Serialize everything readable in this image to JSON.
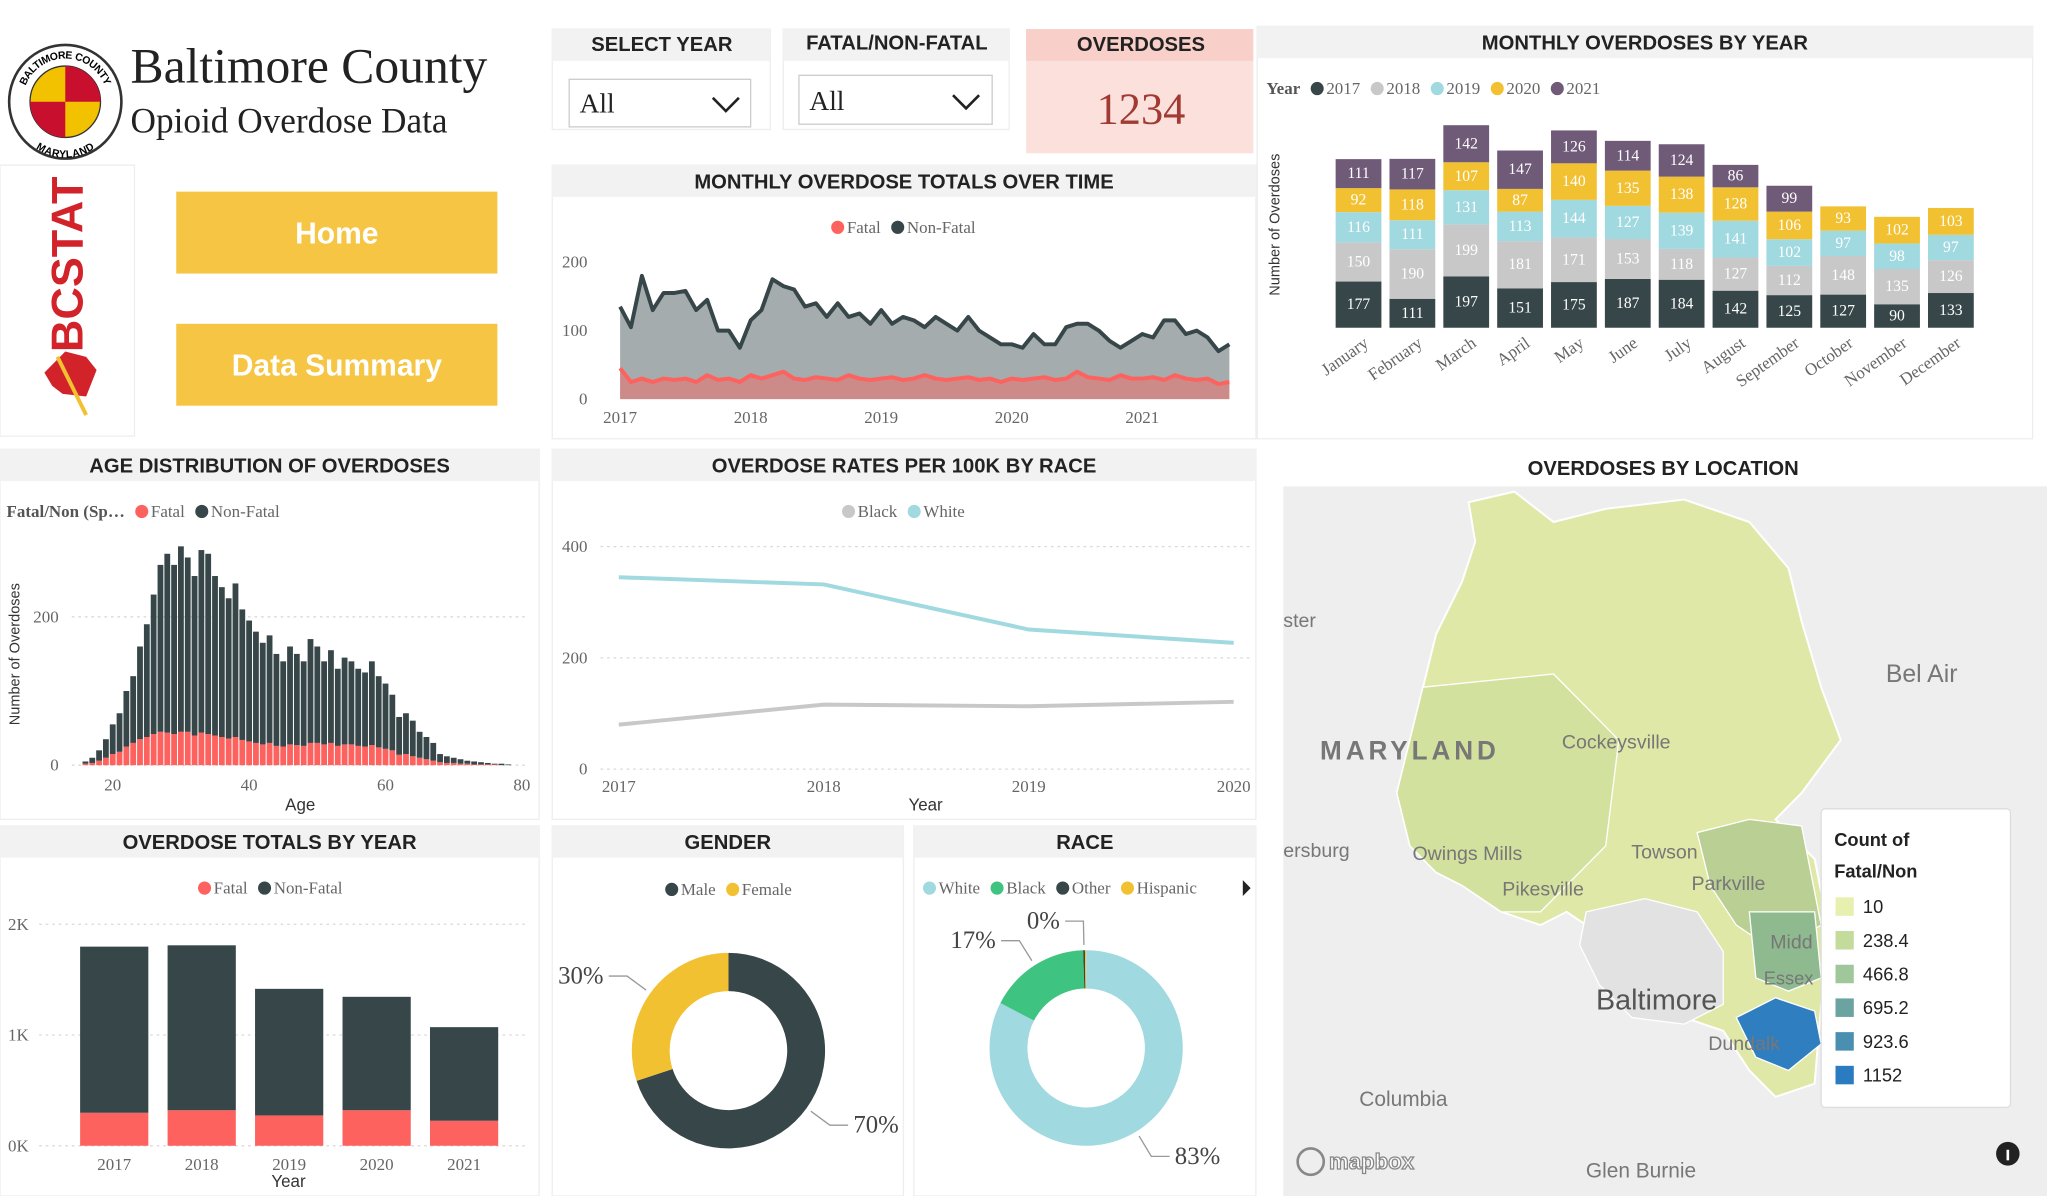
{
  "header": {
    "title": "Baltimore County",
    "subtitle": "Opioid Overdose Data",
    "seal_top": "BALTIMORE COUNTY",
    "seal_bottom": "MARYLAND",
    "logo": "BCSTAT"
  },
  "nav": {
    "buttons": [
      "Home",
      "Data Summary"
    ]
  },
  "filters": [
    {
      "label": "SELECT YEAR",
      "value": "All"
    },
    {
      "label": "FATAL/NON-FATAL",
      "value": "All"
    }
  ],
  "kpi": {
    "label": "OVERDOSES",
    "value": 1234
  },
  "chart_data": [
    {
      "type": "area",
      "title": "MONTHLY OVERDOSE TOTALS OVER TIME",
      "x": [
        2017,
        2017.083,
        2017.167,
        2017.25,
        2017.333,
        2017.417,
        2017.5,
        2017.583,
        2017.667,
        2017.75,
        2017.833,
        2017.917,
        2018,
        2018.083,
        2018.167,
        2018.25,
        2018.333,
        2018.417,
        2018.5,
        2018.583,
        2018.667,
        2018.75,
        2018.833,
        2018.917,
        2019,
        2019.083,
        2019.167,
        2019.25,
        2019.333,
        2019.417,
        2019.5,
        2019.583,
        2019.667,
        2019.75,
        2019.833,
        2019.917,
        2020,
        2020.083,
        2020.167,
        2020.25,
        2020.333,
        2020.417,
        2020.5,
        2020.583,
        2020.667,
        2020.75,
        2020.833,
        2020.917,
        2021,
        2021.083,
        2021.167,
        2021.25,
        2021.333,
        2021.417,
        2021.5,
        2021.583,
        2021.667
      ],
      "series": [
        {
          "name": "Fatal",
          "color": "#fd625e",
          "values": [
            45,
            25,
            30,
            25,
            30,
            28,
            30,
            25,
            35,
            28,
            30,
            25,
            35,
            30,
            35,
            40,
            30,
            28,
            32,
            30,
            28,
            35,
            30,
            28,
            30,
            32,
            28,
            30,
            35,
            30,
            28,
            30,
            32,
            28,
            30,
            25,
            30,
            28,
            30,
            32,
            28,
            30,
            40,
            32,
            30,
            28,
            35,
            30,
            30,
            32,
            28,
            35,
            30,
            28,
            30,
            22,
            25
          ]
        },
        {
          "name": "Non-Fatal",
          "color": "#374649",
          "values": [
            135,
            105,
            180,
            130,
            155,
            155,
            158,
            130,
            145,
            100,
            100,
            75,
            115,
            130,
            175,
            165,
            160,
            135,
            140,
            120,
            140,
            120,
            125,
            110,
            130,
            110,
            120,
            115,
            105,
            120,
            110,
            100,
            120,
            100,
            90,
            80,
            80,
            75,
            95,
            80,
            80,
            105,
            110,
            110,
            100,
            85,
            75,
            85,
            95,
            90,
            115,
            115,
            95,
            100,
            90,
            70,
            80
          ]
        }
      ],
      "xlim": [
        2016.85,
        2021.8
      ],
      "xticks": [
        2017,
        2018,
        2019,
        2020,
        2021
      ],
      "ylim": [
        0,
        220
      ],
      "yticks": [
        0,
        100,
        200
      ],
      "grid": false
    },
    {
      "type": "bar",
      "stacked": true,
      "title": "MONTHLY OVERDOSES BY YEAR",
      "legend_title": "Year",
      "y_label": "Number of Overdoses",
      "categories": [
        "January",
        "February",
        "March",
        "April",
        "May",
        "June",
        "July",
        "August",
        "September",
        "October",
        "November",
        "December"
      ],
      "series": [
        {
          "name": "2017",
          "color": "#374649",
          "values": [
            177,
            111,
            197,
            151,
            175,
            187,
            184,
            142,
            125,
            127,
            90,
            133
          ]
        },
        {
          "name": "2018",
          "color": "#c8c8c8",
          "values": [
            150,
            190,
            199,
            181,
            171,
            153,
            118,
            127,
            112,
            148,
            135,
            126
          ]
        },
        {
          "name": "2019",
          "color": "#a0d9e0",
          "values": [
            116,
            111,
            131,
            113,
            144,
            127,
            139,
            141,
            102,
            97,
            98,
            97
          ]
        },
        {
          "name": "2020",
          "color": "#f2c132",
          "values": [
            92,
            118,
            107,
            87,
            140,
            135,
            138,
            128,
            106,
            93,
            102,
            103
          ]
        },
        {
          "name": "2021",
          "color": "#6f5a78",
          "values": [
            111,
            117,
            142,
            147,
            126,
            114,
            124,
            86,
            99,
            null,
            null,
            null
          ]
        }
      ],
      "ylim": [
        0,
        800
      ],
      "data_labels": true
    },
    {
      "type": "bar",
      "stacked": true,
      "title": "AGE DISTRIBUTION OF OVERDOSES",
      "legend_title": "Fatal/Non (Sp…",
      "x_label": "Age",
      "y_label": "Number of Overdoses",
      "x": [
        16,
        17,
        18,
        19,
        20,
        21,
        22,
        23,
        24,
        25,
        26,
        27,
        28,
        29,
        30,
        31,
        32,
        33,
        34,
        35,
        36,
        37,
        38,
        39,
        40,
        41,
        42,
        43,
        44,
        45,
        46,
        47,
        48,
        49,
        50,
        51,
        52,
        53,
        54,
        55,
        56,
        57,
        58,
        59,
        60,
        61,
        62,
        63,
        64,
        65,
        66,
        67,
        68,
        69,
        70,
        71,
        72,
        73,
        74,
        75,
        76,
        77,
        78
      ],
      "series": [
        {
          "name": "Fatal",
          "color": "#fd625e",
          "values": [
            2,
            3,
            6,
            10,
            15,
            18,
            25,
            30,
            35,
            38,
            42,
            45,
            44,
            42,
            45,
            45,
            40,
            44,
            42,
            40,
            38,
            36,
            38,
            34,
            32,
            30,
            28,
            30,
            26,
            25,
            28,
            27,
            26,
            30,
            30,
            28,
            30,
            26,
            28,
            28,
            26,
            25,
            27,
            24,
            22,
            20,
            14,
            15,
            12,
            10,
            8,
            6,
            4,
            3,
            3,
            2,
            2,
            1,
            1,
            1,
            1,
            0,
            0
          ]
        },
        {
          "name": "Non-Fatal",
          "color": "#374649",
          "values": [
            3,
            7,
            14,
            25,
            40,
            52,
            75,
            90,
            125,
            152,
            188,
            225,
            241,
            228,
            250,
            235,
            215,
            246,
            243,
            215,
            202,
            189,
            207,
            176,
            163,
            150,
            137,
            145,
            124,
            115,
            132,
            123,
            114,
            140,
            130,
            112,
            125,
            104,
            117,
            112,
            104,
            100,
            113,
            96,
            88,
            75,
            51,
            55,
            48,
            35,
            30,
            24,
            11,
            9,
            7,
            6,
            4,
            4,
            3,
            2,
            1,
            2,
            1
          ]
        }
      ],
      "xlim": [
        14,
        81
      ],
      "xticks": [
        20,
        40,
        60,
        80
      ],
      "ylim": [
        0,
        310
      ],
      "yticks": [
        0,
        200
      ],
      "grid": true
    },
    {
      "type": "line",
      "title": "OVERDOSE RATES PER 100K BY RACE",
      "x_label": "Year",
      "x": [
        2017,
        2018,
        2019,
        2020
      ],
      "series": [
        {
          "name": "Black",
          "color": "#c8c8c8",
          "values": [
            80,
            116,
            113,
            121
          ]
        },
        {
          "name": "White",
          "color": "#a0d9e0",
          "values": [
            345,
            332,
            251,
            227
          ]
        }
      ],
      "xlim": [
        2017,
        2020
      ],
      "xticks": [
        2017,
        2018,
        2019,
        2020
      ],
      "ylim": [
        0,
        430
      ],
      "yticks": [
        0,
        200,
        400
      ],
      "grid": true
    },
    {
      "type": "bar",
      "stacked": true,
      "title": "OVERDOSE TOTALS BY YEAR",
      "x_label": "Year",
      "categories": [
        "2017",
        "2018",
        "2019",
        "2020",
        "2021"
      ],
      "series": [
        {
          "name": "Fatal",
          "color": "#fd625e",
          "values": [
            298,
            321,
            274,
            321,
            226
          ]
        },
        {
          "name": "Non-Fatal",
          "color": "#374649",
          "values": [
            1500,
            1489,
            1143,
            1024,
            845
          ]
        }
      ],
      "ylim": [
        0,
        2100
      ],
      "yticks": [
        {
          "value": 0,
          "label": "0K"
        },
        {
          "value": 1000,
          "label": "1K"
        },
        {
          "value": 2000,
          "label": "2K"
        }
      ],
      "grid": true
    },
    {
      "type": "pie",
      "title": "GENDER",
      "categories": [
        "Male",
        "Female"
      ],
      "values": [
        70,
        30
      ],
      "value_labels": [
        "70%",
        "30%"
      ],
      "colors": [
        "#374649",
        "#f2c132"
      ]
    },
    {
      "type": "pie",
      "title": "RACE",
      "categories": [
        "White",
        "Black",
        "Other",
        "Hispanic"
      ],
      "values": [
        82.6,
        16.9,
        0.3,
        0.2
      ],
      "value_labels": [
        "83%",
        "17%",
        "0%",
        null
      ],
      "colors": [
        "#a0d9e0",
        "#3fc380",
        "#374649",
        "#f2c132"
      ]
    }
  ],
  "map": {
    "title": "OVERDOSES BY LOCATION",
    "labels": [
      "ster",
      "MARYLAND",
      "Cockeysville",
      "Bel Air",
      "ersburg",
      "Owings Mills",
      "Towson",
      "Pikesville",
      "Parkville",
      "Midd",
      "Essex",
      "Baltimore",
      "Dundalk",
      "Columbia",
      "Glen Burnie"
    ],
    "legend_title": "Count of Fatal/Non",
    "legend": [
      {
        "value": 10,
        "color": "#e8f0b0"
      },
      {
        "value": 238.4,
        "color": "#c3dc9c"
      },
      {
        "value": 466.8,
        "color": "#9fc79a"
      },
      {
        "value": 695.2,
        "color": "#6aa39f"
      },
      {
        "value": 923.6,
        "color": "#4a8fb0"
      },
      {
        "value": 1152,
        "color": "#2b7bc0"
      }
    ],
    "attribution": "mapbox"
  }
}
